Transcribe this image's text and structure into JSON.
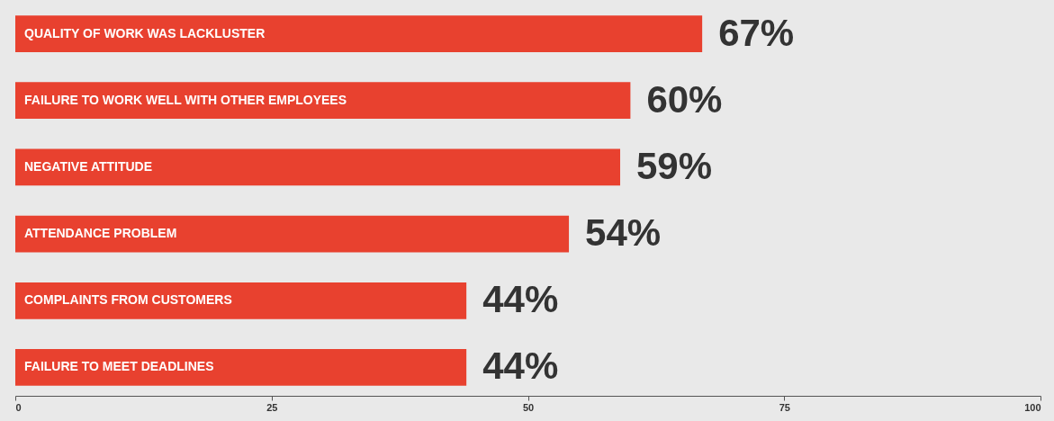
{
  "chart_data": {
    "type": "bar",
    "orientation": "horizontal",
    "categories": [
      "QUALITY OF WORK WAS LACKLUSTER",
      "FAILURE TO WORK WELL WITH OTHER EMPLOYEES",
      "NEGATIVE ATTITUDE",
      "ATTENDANCE PROBLEM",
      "COMPLAINTS FROM CUSTOMERS",
      "FAILURE TO MEET DEADLINES"
    ],
    "values": [
      67,
      60,
      59,
      54,
      44,
      44
    ],
    "value_labels": [
      "67%",
      "60%",
      "59%",
      "54%",
      "44%",
      "44%"
    ],
    "color": "#e8412f",
    "xlim": [
      0,
      100
    ],
    "xticks": [
      0,
      25,
      50,
      75,
      100
    ],
    "grid": false
  }
}
